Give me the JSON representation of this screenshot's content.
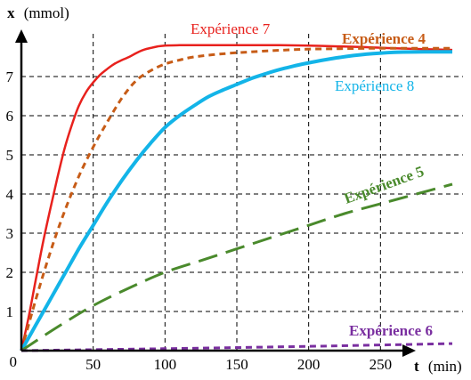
{
  "chart_data": {
    "type": "line",
    "ylabel": {
      "symbol": "x",
      "unit": "(mmol)"
    },
    "xlabel": {
      "symbol": "t",
      "unit": "(min)"
    },
    "origin_label": "0",
    "xlim": [
      0,
      300
    ],
    "ylim": [
      0,
      8
    ],
    "xticks": [
      "50",
      "100",
      "150",
      "200",
      "250"
    ],
    "yticks": [
      "1",
      "2",
      "3",
      "4",
      "5",
      "6",
      "7"
    ],
    "grid": true,
    "series": [
      {
        "name": "Expérience 7",
        "color": "#e8211d",
        "style": "solid",
        "x": [
          0,
          5,
          10,
          15,
          20,
          25,
          30,
          35,
          40,
          45,
          50,
          55,
          60,
          65,
          70,
          75,
          80,
          85,
          90,
          95,
          100,
          110,
          120,
          140,
          160,
          180,
          200,
          220,
          240,
          260,
          280,
          300
        ],
        "y": [
          0,
          0.85,
          1.8,
          2.75,
          3.6,
          4.4,
          5.15,
          5.75,
          6.25,
          6.6,
          6.85,
          7.05,
          7.2,
          7.33,
          7.42,
          7.5,
          7.6,
          7.68,
          7.73,
          7.77,
          7.79,
          7.8,
          7.8,
          7.8,
          7.8,
          7.8,
          7.79,
          7.77,
          7.75,
          7.72,
          7.7,
          7.68
        ]
      },
      {
        "name": "Expérience 4",
        "color": "#c75c17",
        "style": "short-dash",
        "x": [
          0,
          10,
          20,
          30,
          40,
          50,
          60,
          70,
          80,
          90,
          100,
          110,
          120,
          140,
          160,
          180,
          200,
          220,
          240,
          260,
          280,
          300
        ],
        "y": [
          0,
          1.3,
          2.5,
          3.55,
          4.45,
          5.2,
          5.85,
          6.45,
          6.9,
          7.15,
          7.32,
          7.42,
          7.5,
          7.58,
          7.63,
          7.67,
          7.7,
          7.71,
          7.72,
          7.72,
          7.72,
          7.72
        ]
      },
      {
        "name": "Expérience 8",
        "color": "#13b4e8",
        "style": "solid",
        "x": [
          0,
          10,
          20,
          30,
          40,
          50,
          60,
          70,
          80,
          90,
          100,
          110,
          120,
          130,
          140,
          150,
          160,
          170,
          180,
          190,
          200,
          220,
          240,
          260,
          280,
          300
        ],
        "y": [
          0,
          0.65,
          1.3,
          1.95,
          2.6,
          3.2,
          3.8,
          4.35,
          4.85,
          5.3,
          5.7,
          6.0,
          6.25,
          6.48,
          6.65,
          6.8,
          6.95,
          7.07,
          7.18,
          7.27,
          7.35,
          7.48,
          7.57,
          7.62,
          7.63,
          7.63
        ]
      },
      {
        "name": "Expérience 5",
        "color": "#4a8a2c",
        "style": "long-dash",
        "x": [
          0,
          25,
          50,
          75,
          100,
          125,
          150,
          175,
          200,
          225,
          250,
          275,
          300
        ],
        "y": [
          0,
          0.6,
          1.15,
          1.6,
          2.0,
          2.3,
          2.6,
          2.9,
          3.2,
          3.5,
          3.75,
          4.0,
          4.25
        ]
      },
      {
        "name": "Expérience 6",
        "color": "#7a2fa0",
        "style": "short-dash",
        "x": [
          0,
          100,
          200,
          300
        ],
        "y": [
          0,
          0.05,
          0.11,
          0.18
        ]
      }
    ]
  }
}
